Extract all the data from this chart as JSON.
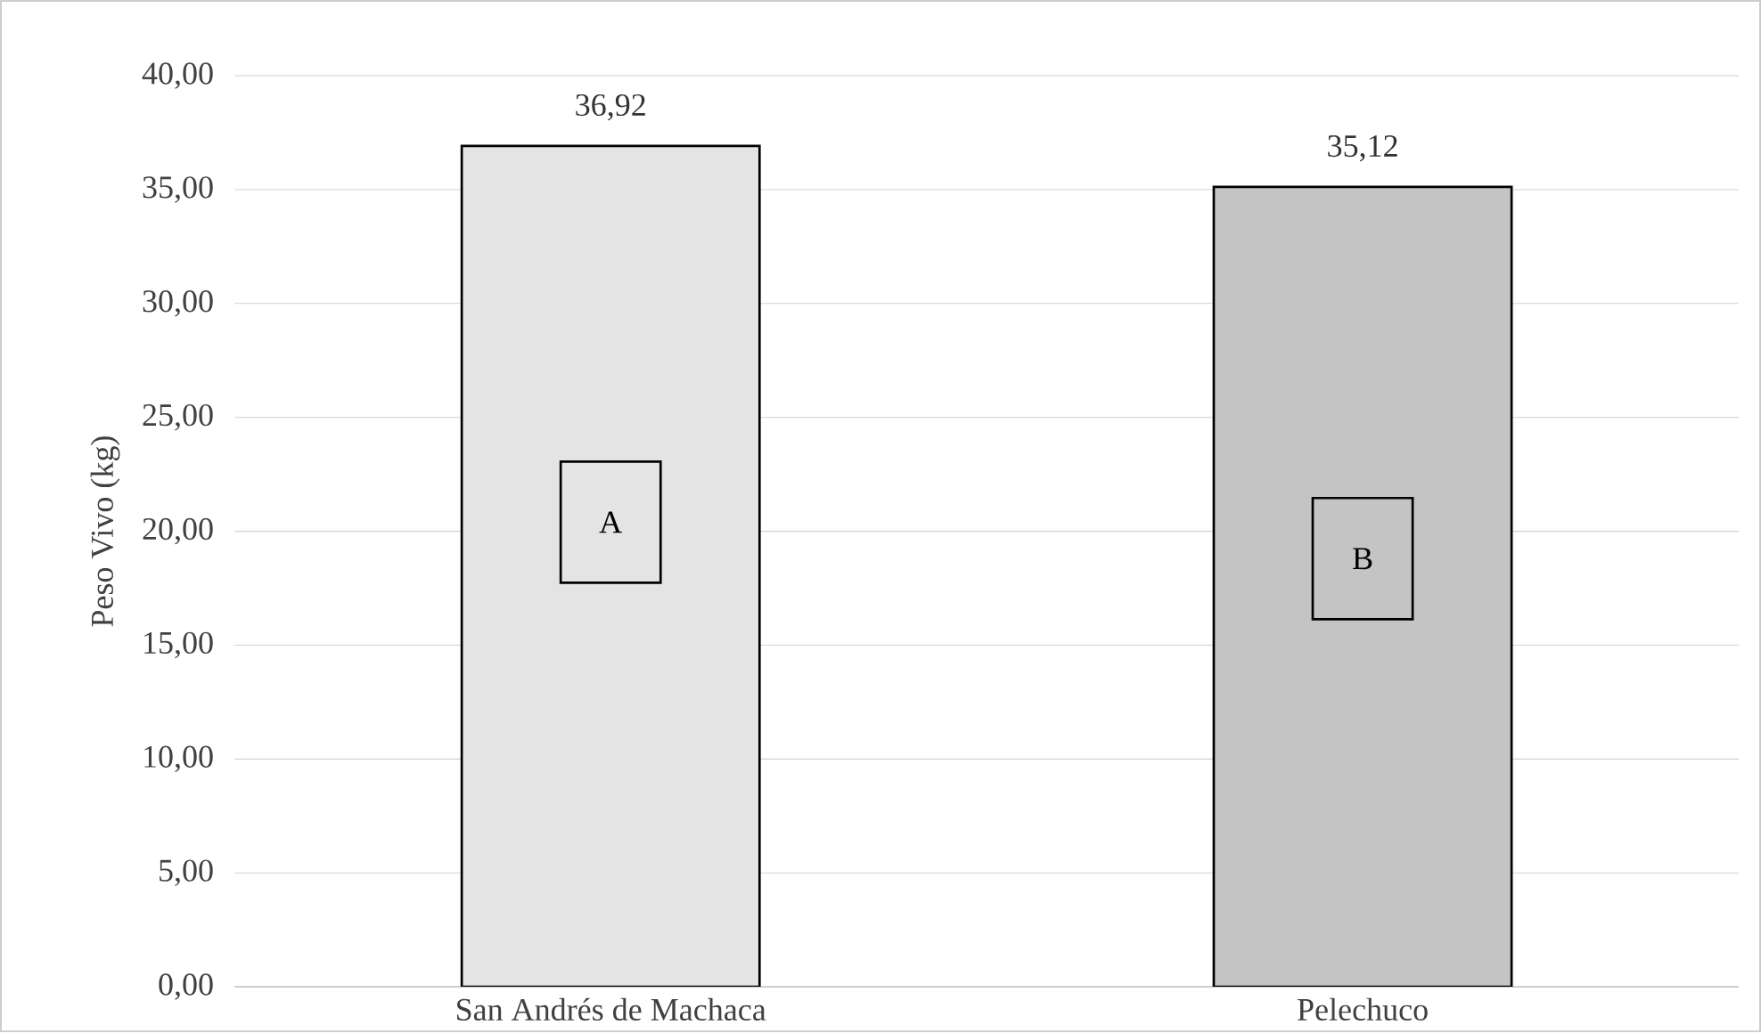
{
  "chart_data": {
    "type": "bar",
    "categories": [
      "San Andrés de Machaca",
      "Pelechuco"
    ],
    "values": [
      36.92,
      35.12
    ],
    "colors": [
      "#e4e4e4",
      "#c4c4c4"
    ],
    "value_labels": [
      "36,92",
      "35,12"
    ],
    "ylabel": "Peso Vivo  (kg)",
    "ylim": [
      0,
      40
    ],
    "yticks": [
      {
        "value": 0,
        "label": "0,00"
      },
      {
        "value": 5,
        "label": "5,00"
      },
      {
        "value": 10,
        "label": "10,00"
      },
      {
        "value": 15,
        "label": "15,00"
      },
      {
        "value": 20,
        "label": "20,00"
      },
      {
        "value": 25,
        "label": "25,00"
      },
      {
        "value": 30,
        "label": "30,00"
      },
      {
        "value": 35,
        "label": "35,00"
      },
      {
        "value": 40,
        "label": "40,00"
      }
    ],
    "grid": "y",
    "annotations": [
      "A",
      "B"
    ]
  }
}
